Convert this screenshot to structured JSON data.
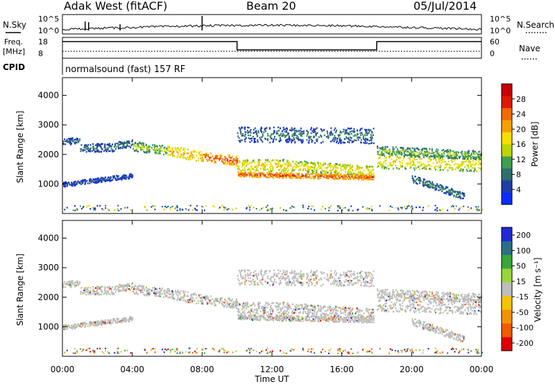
{
  "header": {
    "station": "Adak West (fitACF)",
    "beam": "Beam 20",
    "date": "05/Jul/2014"
  },
  "panels": {
    "nsky": {
      "left_label": "N.Sky",
      "right_label": "N.Search",
      "left_ticks": [
        "10^5",
        "10^0"
      ],
      "right_ticks": [
        "10^5",
        "10^0"
      ]
    },
    "freq": {
      "left_label_1": "Freq.",
      "left_label_2": "[MHz]",
      "right_label": "Nave",
      "left_ticks": [
        "18",
        "8"
      ],
      "right_ticks": [
        "60",
        "0"
      ]
    },
    "cpid": {
      "label": "CPID",
      "text": "normalsound (fast) 157 RF"
    }
  },
  "colorbars": {
    "power": {
      "label": "Power [dB]",
      "ticks": [
        "4",
        "8",
        "12",
        "16",
        "20",
        "24",
        "28"
      ],
      "colors": [
        "#0a2dff",
        "#1f3ea8",
        "#2e6d6e",
        "#3f9e4f",
        "#bcd400",
        "#f6e000",
        "#f7a100",
        "#f06a00",
        "#e01800",
        "#c80000"
      ]
    },
    "velocity": {
      "label": "Velocity [m s⁻¹]",
      "ticks": [
        "200",
        "100",
        "50",
        "15",
        "-15",
        "-50",
        "-100",
        "-200"
      ],
      "colors": [
        "#1d2bd6",
        "#2a6f86",
        "#39a637",
        "#97d639",
        "#bdbdbd",
        "#f5c400",
        "#f59200",
        "#f05a00",
        "#e00000"
      ]
    }
  },
  "chart_data": [
    {
      "type": "heatmap",
      "name": "power",
      "ylabel": "Slant Range [km]",
      "yticks": [
        1000,
        2000,
        3000,
        4000
      ],
      "ylim": [
        0,
        4600
      ],
      "xlim": [
        0,
        24
      ],
      "bands": [
        {
          "t0": 0.0,
          "t1": 1.0,
          "r0": 2450,
          "r1": 2500,
          "thick": 110,
          "value": 8
        },
        {
          "t0": 1.0,
          "t1": 3.0,
          "r0": 2250,
          "r1": 2250,
          "thick": 140,
          "value": 9
        },
        {
          "t0": 3.0,
          "t1": 4.0,
          "r0": 2320,
          "r1": 2400,
          "thick": 120,
          "value": 10
        },
        {
          "t0": 4.0,
          "t1": 6.0,
          "r0": 2300,
          "r1": 2150,
          "thick": 160,
          "value": 14
        },
        {
          "t0": 6.0,
          "t1": 8.0,
          "r0": 2150,
          "r1": 1950,
          "thick": 180,
          "value": 20
        },
        {
          "t0": 8.0,
          "t1": 10.0,
          "r0": 1950,
          "r1": 1800,
          "thick": 160,
          "value": 24
        },
        {
          "t0": 10.0,
          "t1": 13.0,
          "r0": 1650,
          "r1": 1650,
          "thick": 200,
          "value": 18
        },
        {
          "t0": 13.0,
          "t1": 17.8,
          "r0": 1650,
          "r1": 1450,
          "thick": 180,
          "value": 17
        },
        {
          "t0": 10.0,
          "t1": 17.8,
          "r0": 1350,
          "r1": 1250,
          "thick": 90,
          "value": 24
        },
        {
          "t0": 10.0,
          "t1": 17.8,
          "r0": 2700,
          "r1": 2650,
          "thick": 260,
          "value": 9
        },
        {
          "t0": 18.0,
          "t1": 24.0,
          "r0": 1800,
          "r1": 1700,
          "thick": 260,
          "value": 17
        },
        {
          "t0": 18.0,
          "t1": 24.0,
          "r0": 2150,
          "r1": 2000,
          "thick": 150,
          "value": 13
        },
        {
          "t0": 0.0,
          "t1": 4.0,
          "r0": 1000,
          "r1": 1300,
          "thick": 80,
          "value": 7
        },
        {
          "t0": 20.0,
          "t1": 23.0,
          "r0": 1200,
          "r1": 600,
          "thick": 120,
          "value": 10
        }
      ]
    },
    {
      "type": "heatmap",
      "name": "velocity",
      "ylabel": "Slant Range [km]",
      "xlabel": "Time UT",
      "xticks": [
        "00:00",
        "04:00",
        "08:00",
        "12:00",
        "16:00",
        "20:00",
        "00:00"
      ],
      "yticks": [
        1000,
        2000,
        3000,
        4000
      ],
      "ylim": [
        0,
        4600
      ],
      "xlim": [
        0,
        24
      ]
    },
    {
      "type": "line",
      "name": "frequency",
      "x": [
        0,
        10,
        10,
        18,
        18,
        24
      ],
      "y": [
        17.0,
        17.0,
        11.0,
        11.0,
        17.0,
        17.0
      ]
    }
  ]
}
